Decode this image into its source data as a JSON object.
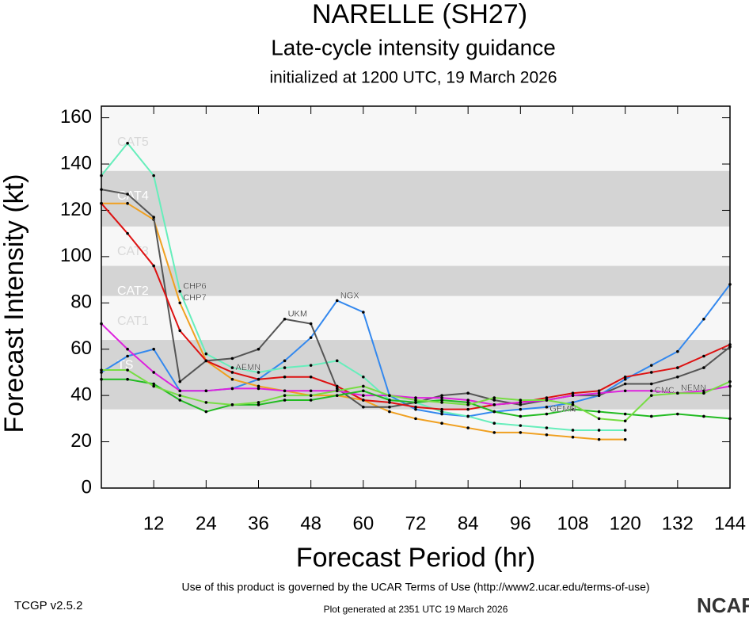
{
  "chart_data": {
    "type": "line",
    "title": "NARELLE (SH27)",
    "subtitle": "Late-cycle intensity guidance",
    "initialized": "initialized at 1200 UTC, 19 March 2026",
    "x_label": "Forecast Period (hr)",
    "y_label": "Forecast Intensity (kt)",
    "xlim": [
      0,
      144
    ],
    "ylim": [
      0,
      165
    ],
    "xticks": [
      12,
      24,
      36,
      48,
      60,
      72,
      84,
      96,
      108,
      120,
      132,
      144
    ],
    "yticks": [
      0,
      20,
      40,
      60,
      80,
      100,
      120,
      140,
      160
    ],
    "bands": [
      {
        "label": "TS",
        "min": 34,
        "max": 64
      },
      {
        "label": "CAT1",
        "min": 64,
        "max": 83
      },
      {
        "label": "CAT2",
        "min": 83,
        "max": 96
      },
      {
        "label": "CAT3",
        "min": 96,
        "max": 113
      },
      {
        "label": "CAT4",
        "min": 113,
        "max": 137
      },
      {
        "label": "CAT5",
        "min": 137,
        "max": 165
      }
    ],
    "x": [
      0,
      6,
      12,
      18,
      24,
      30,
      36,
      42,
      48,
      54,
      60,
      66,
      72,
      78,
      84,
      90,
      96,
      102,
      108,
      114,
      120,
      126,
      132,
      138,
      144
    ],
    "series": [
      {
        "name": "NGX",
        "color": "#3388ee",
        "values": [
          50,
          57,
          60,
          42,
          42,
          43,
          47,
          55,
          65,
          81,
          76,
          40,
          34,
          32,
          31,
          33,
          34,
          35,
          37,
          40,
          47,
          53,
          59,
          73,
          88
        ]
      },
      {
        "name": "CHP6",
        "color": "#66eebb",
        "values": [
          135,
          149,
          135,
          85,
          58,
          52,
          50,
          52,
          53,
          55,
          48,
          38,
          37,
          33,
          31,
          28,
          27,
          26,
          25,
          25,
          25,
          null,
          null,
          null,
          null
        ]
      },
      {
        "name": "CHP7",
        "color": "#f0a020",
        "values": [
          123,
          123,
          116,
          80,
          55,
          47,
          44,
          42,
          40,
          40,
          38,
          33,
          30,
          28,
          26,
          24,
          24,
          23,
          22,
          21,
          21,
          null,
          null,
          null,
          null
        ]
      },
      {
        "name": "UKM",
        "color": "#555555",
        "values": [
          129,
          127,
          117,
          46,
          55,
          56,
          60,
          73,
          71,
          43,
          35,
          35,
          37,
          40,
          41,
          38,
          36,
          38,
          40,
          40,
          45,
          45,
          48,
          52,
          61
        ]
      },
      {
        "name": "AEMN",
        "color": "#dd1111",
        "values": [
          123,
          110,
          96,
          68,
          55,
          50,
          47,
          48,
          48,
          44,
          38,
          37,
          35,
          34,
          34,
          36,
          37,
          39,
          41,
          42,
          48,
          50,
          52,
          57,
          62
        ]
      },
      {
        "name": "NEMN",
        "color": "#dd22dd",
        "values": [
          71,
          60,
          50,
          42,
          42,
          43,
          43,
          42,
          42,
          42,
          40,
          40,
          39,
          39,
          38,
          36,
          37,
          38,
          40,
          41,
          42,
          42,
          41,
          42,
          44
        ]
      },
      {
        "name": "GEMN",
        "color": "#22bb22",
        "values": [
          47,
          47,
          45,
          38,
          33,
          36,
          36,
          38,
          38,
          40,
          42,
          38,
          37,
          38,
          37,
          33,
          31,
          32,
          34,
          33,
          32,
          31,
          32,
          31,
          30
        ]
      },
      {
        "name": "CMC",
        "color": "#77dd44",
        "values": [
          51,
          51,
          44,
          40,
          37,
          36,
          37,
          40,
          40,
          42,
          44,
          40,
          38,
          37,
          36,
          39,
          38,
          38,
          36,
          30,
          29,
          40,
          41,
          41,
          46
        ]
      }
    ],
    "footer_terms": "Use of this product is governed by the UCAR Terms of Use (http://www2.ucar.edu/terms-of-use)",
    "version": "TCGP v2.5.2",
    "generated": "Plot generated at 2351 UTC   19 March 2026",
    "logo": "NCAR"
  }
}
